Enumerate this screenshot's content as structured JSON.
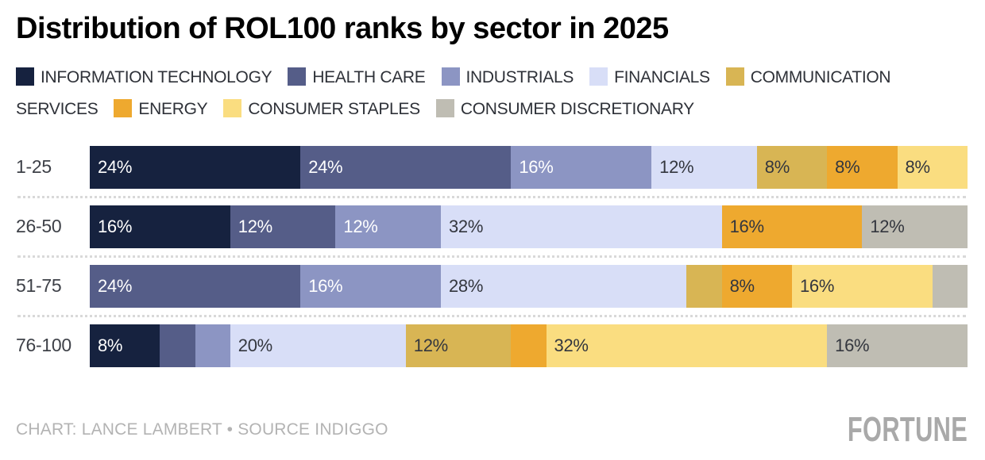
{
  "title": "Distribution of ROL100 ranks by sector in 2025",
  "chart_data": {
    "type": "bar",
    "orientation": "horizontal-stacked",
    "unit": "%",
    "stack_total": 100,
    "label_threshold": 8,
    "categories": [
      "1-25",
      "26-50",
      "51-75",
      "76-100"
    ],
    "series": [
      {
        "name": "INFORMATION TECHNOLOGY",
        "color": "#16223f",
        "label_color": "#ffffff",
        "values": [
          24,
          16,
          0,
          8
        ]
      },
      {
        "name": "HEALTH CARE",
        "color": "#555d88",
        "label_color": "#ffffff",
        "values": [
          24,
          12,
          24,
          4
        ]
      },
      {
        "name": "INDUSTRIALS",
        "color": "#8c95c3",
        "label_color": "#ffffff",
        "values": [
          16,
          12,
          16,
          4
        ]
      },
      {
        "name": "FINANCIALS",
        "color": "#d8def7",
        "label_color": "#33363e",
        "values": [
          12,
          32,
          28,
          20
        ]
      },
      {
        "name": "COMMUNICATION SERVICES",
        "color": "#d8b554",
        "label_color": "#33363e",
        "values": [
          8,
          0,
          4,
          12
        ]
      },
      {
        "name": "ENERGY",
        "color": "#eea92f",
        "label_color": "#33363e",
        "values": [
          8,
          16,
          8,
          4
        ]
      },
      {
        "name": "CONSUMER STAPLES",
        "color": "#fadd80",
        "label_color": "#33363e",
        "values": [
          8,
          0,
          16,
          32
        ]
      },
      {
        "name": "CONSUMER DISCRETIONARY",
        "color": "#bfbdb3",
        "label_color": "#33363e",
        "values": [
          0,
          12,
          4,
          16
        ]
      }
    ],
    "legend_position": "top",
    "grid": false
  },
  "footer": {
    "credit": "CHART: LANCE LAMBERT • SOURCE INDIGGO",
    "logo": "FORTUNE"
  }
}
